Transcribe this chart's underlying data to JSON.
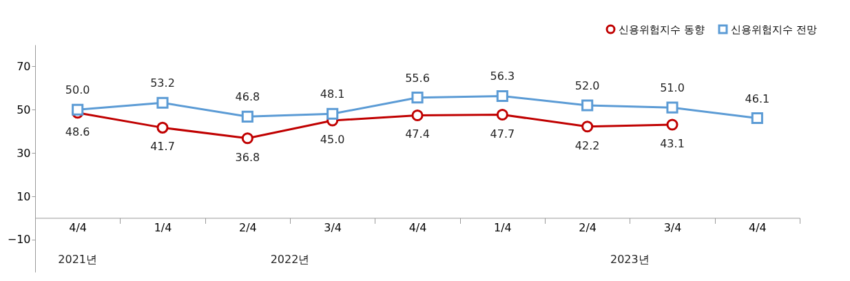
{
  "chart_data": {
    "type": "line",
    "categories": [
      "4/4",
      "1/4",
      "2/4",
      "3/4",
      "4/4",
      "1/4",
      "2/4",
      "3/4",
      "4/4"
    ],
    "series": [
      {
        "name": "신용위험지수  동향",
        "color": "#c00000",
        "marker": "circle",
        "values": [
          48.6,
          41.7,
          36.8,
          45.0,
          47.4,
          47.7,
          42.2,
          43.1,
          null
        ],
        "value_labels": [
          "48.6",
          "41.7",
          "36.8",
          "45.0",
          "47.4",
          "47.7",
          "42.2",
          "43.1",
          null
        ]
      },
      {
        "name": "신용위험지수  전망",
        "color": "#5b9bd5",
        "marker": "square",
        "values": [
          50.0,
          53.2,
          46.8,
          48.1,
          55.6,
          56.3,
          52.0,
          51.0,
          46.1
        ],
        "value_labels": [
          "50.0",
          "53.2",
          "46.8",
          "48.1",
          "55.6",
          "56.3",
          "52.0",
          "51.0",
          "46.1"
        ]
      }
    ],
    "annotations": [
      "2021년",
      "2022년",
      "2023년"
    ],
    "ylim": [
      -25,
      80
    ],
    "yticks": [
      -10,
      10,
      30,
      50,
      70
    ],
    "grid": false,
    "legend": "top right",
    "line_style": "solid"
  }
}
